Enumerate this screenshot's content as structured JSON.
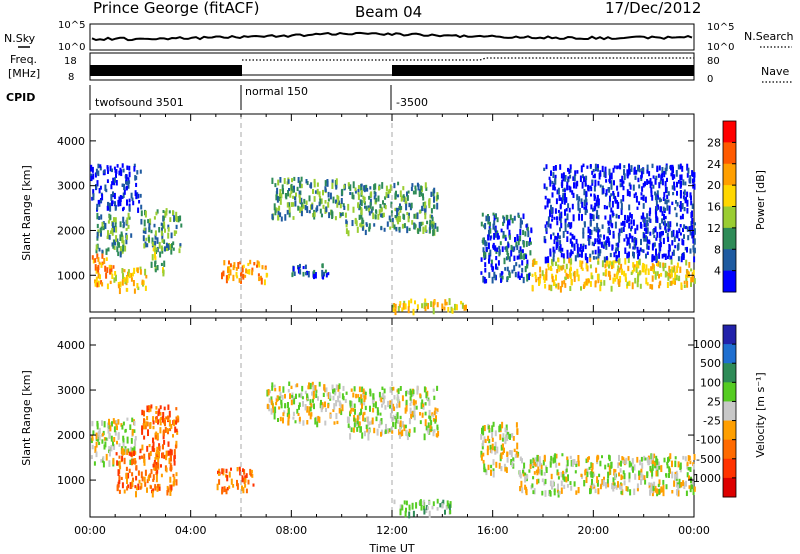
{
  "header": {
    "title": "Prince George (fitACF)",
    "beam": "Beam 04",
    "date": "17/Dec/2012"
  },
  "strip": {
    "nsky_label": "N.Sky",
    "nsky_ticks": [
      "10^5",
      "10^0"
    ],
    "nsearch_label": "N.Search",
    "nsearch_ticks": [
      "10^5",
      "10^0"
    ],
    "freq_label_top": "Freq.",
    "freq_label_bottom": "[MHz]",
    "freq_ticks": [
      "18",
      "8"
    ],
    "nave_label": "Nave",
    "nave_ticks": [
      "80",
      "0"
    ],
    "cpid_label": "CPID",
    "cpid_segments": [
      {
        "label": "twofsound 3501",
        "start_hour": 0
      },
      {
        "label": "normal 150",
        "start_hour": 6
      },
      {
        "label": "-3500",
        "start_hour": 12
      }
    ]
  },
  "chart_data": [
    {
      "type": "heatmap",
      "name": "power-panel",
      "xlabel": "",
      "ylabel": "Slant Range [km]",
      "x_range_hours": [
        0,
        24
      ],
      "ylim": [
        180,
        4600
      ],
      "y_ticks": [
        1000,
        2000,
        3000,
        4000
      ],
      "colorbar": {
        "label": "Power [dB]",
        "ticks": [
          "28",
          "24",
          "20",
          "16",
          "12",
          "8",
          "4"
        ],
        "colors": [
          "#ff0000",
          "#ff5a00",
          "#ff9f00",
          "#ffd700",
          "#9acd32",
          "#2e8b57",
          "#1e5aa0",
          "#0000ff"
        ]
      },
      "regions": [
        {
          "t0": 0.0,
          "t1": 0.9,
          "r0": 800,
          "r1": 1500,
          "c": 2
        },
        {
          "t0": 0.2,
          "t1": 1.6,
          "r0": 1500,
          "r1": 2400,
          "c": 5
        },
        {
          "t0": 0.9,
          "t1": 2.2,
          "r0": 700,
          "r1": 1200,
          "c": 3
        },
        {
          "t0": 2.0,
          "t1": 3.6,
          "r0": 1600,
          "r1": 2500,
          "c": 5
        },
        {
          "t0": 2.4,
          "t1": 3.0,
          "r0": 1100,
          "r1": 1700,
          "c": 4
        },
        {
          "t0": 0.0,
          "t1": 2.0,
          "r0": 2500,
          "r1": 3500,
          "c": 7
        },
        {
          "t0": 5.2,
          "t1": 7.0,
          "r0": 900,
          "r1": 1350,
          "c": 2
        },
        {
          "t0": 7.2,
          "t1": 10.0,
          "r0": 2300,
          "r1": 3200,
          "c": 5
        },
        {
          "t0": 10.0,
          "t1": 13.8,
          "r0": 2000,
          "r1": 3100,
          "c": 5
        },
        {
          "t0": 8.0,
          "t1": 9.5,
          "r0": 1000,
          "r1": 1300,
          "c": 6
        },
        {
          "t0": 12.0,
          "t1": 15.0,
          "r0": 250,
          "r1": 500,
          "c": 3
        },
        {
          "t0": 15.5,
          "t1": 17.5,
          "r0": 900,
          "r1": 2400,
          "c": 6
        },
        {
          "t0": 17.5,
          "t1": 24.0,
          "r0": 750,
          "r1": 1400,
          "c": 3
        },
        {
          "t0": 18.0,
          "t1": 24.0,
          "r0": 1400,
          "r1": 3500,
          "c": 7
        }
      ]
    },
    {
      "type": "heatmap",
      "name": "velocity-panel",
      "xlabel": "Time UT",
      "ylabel": "Slant Range [km]",
      "x_range_hours": [
        0,
        24
      ],
      "x_ticks": [
        "00:00",
        "04:00",
        "08:00",
        "12:00",
        "16:00",
        "20:00",
        "00:00"
      ],
      "ylim": [
        180,
        4600
      ],
      "y_ticks": [
        1000,
        2000,
        3000,
        4000
      ],
      "colorbar": {
        "label": "Velocity [m s⁻¹]",
        "ticks": [
          "1000",
          "500",
          "100",
          "25",
          "-25",
          "-100",
          "-500",
          "-1000"
        ],
        "colors": [
          "#2222aa",
          "#1f6fd0",
          "#2e8b57",
          "#55cc22",
          "#c8c8c8",
          "#ff9f00",
          "#ff6a00",
          "#ff3300",
          "#dd0000"
        ]
      },
      "regions": [
        {
          "t0": 0.0,
          "t1": 1.8,
          "r0": 1400,
          "r1": 2400,
          "c": 4
        },
        {
          "t0": 1.0,
          "t1": 3.4,
          "r0": 750,
          "r1": 1700,
          "c": 6
        },
        {
          "t0": 2.0,
          "t1": 3.5,
          "r0": 1600,
          "r1": 2700,
          "c": 6
        },
        {
          "t0": 5.0,
          "t1": 6.5,
          "r0": 800,
          "r1": 1300,
          "c": 6
        },
        {
          "t0": 7.0,
          "t1": 10.0,
          "r0": 2300,
          "r1": 3200,
          "c": 4
        },
        {
          "t0": 10.0,
          "t1": 13.8,
          "r0": 2000,
          "r1": 3100,
          "c": 4
        },
        {
          "t0": 12.0,
          "t1": 14.5,
          "r0": 300,
          "r1": 600,
          "c": 3
        },
        {
          "t0": 17.0,
          "t1": 24.0,
          "r0": 750,
          "r1": 1600,
          "c": 4
        },
        {
          "t0": 15.5,
          "t1": 17.0,
          "r0": 1200,
          "r1": 2300,
          "c": 4
        }
      ]
    }
  ]
}
